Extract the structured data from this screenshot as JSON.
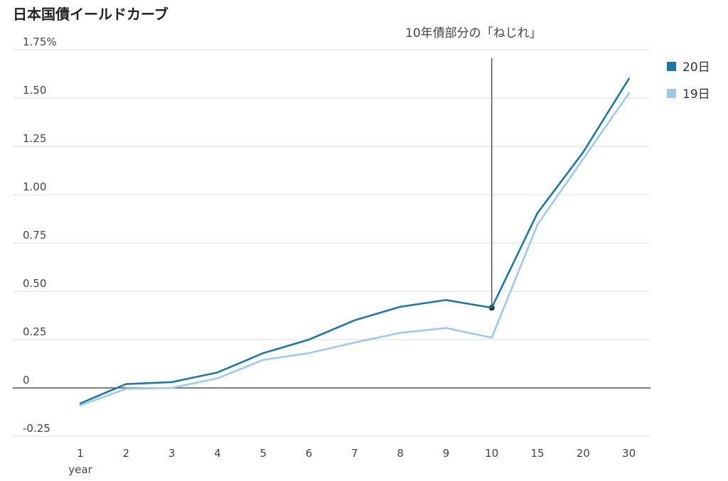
{
  "chart_data": {
    "type": "line",
    "title": "日本国債イールドカーブ",
    "categories": [
      "1",
      "2",
      "3",
      "4",
      "5",
      "6",
      "7",
      "8",
      "9",
      "10",
      "15",
      "20",
      "30"
    ],
    "x_unit_label": "year",
    "y_ticks": [
      {
        "value": 1.75,
        "label": "1.75%"
      },
      {
        "value": 1.5,
        "label": "1.50"
      },
      {
        "value": 1.25,
        "label": "1.25"
      },
      {
        "value": 1.0,
        "label": "1.00"
      },
      {
        "value": 0.75,
        "label": "0.75"
      },
      {
        "value": 0.5,
        "label": "0.50"
      },
      {
        "value": 0.25,
        "label": "0.25"
      },
      {
        "value": 0,
        "label": "0"
      },
      {
        "value": -0.25,
        "label": "-0.25"
      }
    ],
    "ylim": [
      -0.25,
      1.75
    ],
    "grid": true,
    "legend_position": "right",
    "series": [
      {
        "name": "20日",
        "color": "#1f77a4",
        "values": [
          -0.08,
          0.02,
          0.03,
          0.08,
          0.18,
          0.25,
          0.35,
          0.42,
          0.455,
          0.415,
          0.905,
          1.22,
          1.6
        ]
      },
      {
        "name": "19日",
        "color": "#9ecae8",
        "values": [
          -0.09,
          -0.005,
          0.0,
          0.05,
          0.145,
          0.18,
          0.235,
          0.285,
          0.31,
          0.26,
          0.845,
          1.185,
          1.525
        ]
      }
    ],
    "annotation": {
      "text": "10年債部分の「ねじれ」",
      "category": "10",
      "value": 0.415
    }
  }
}
